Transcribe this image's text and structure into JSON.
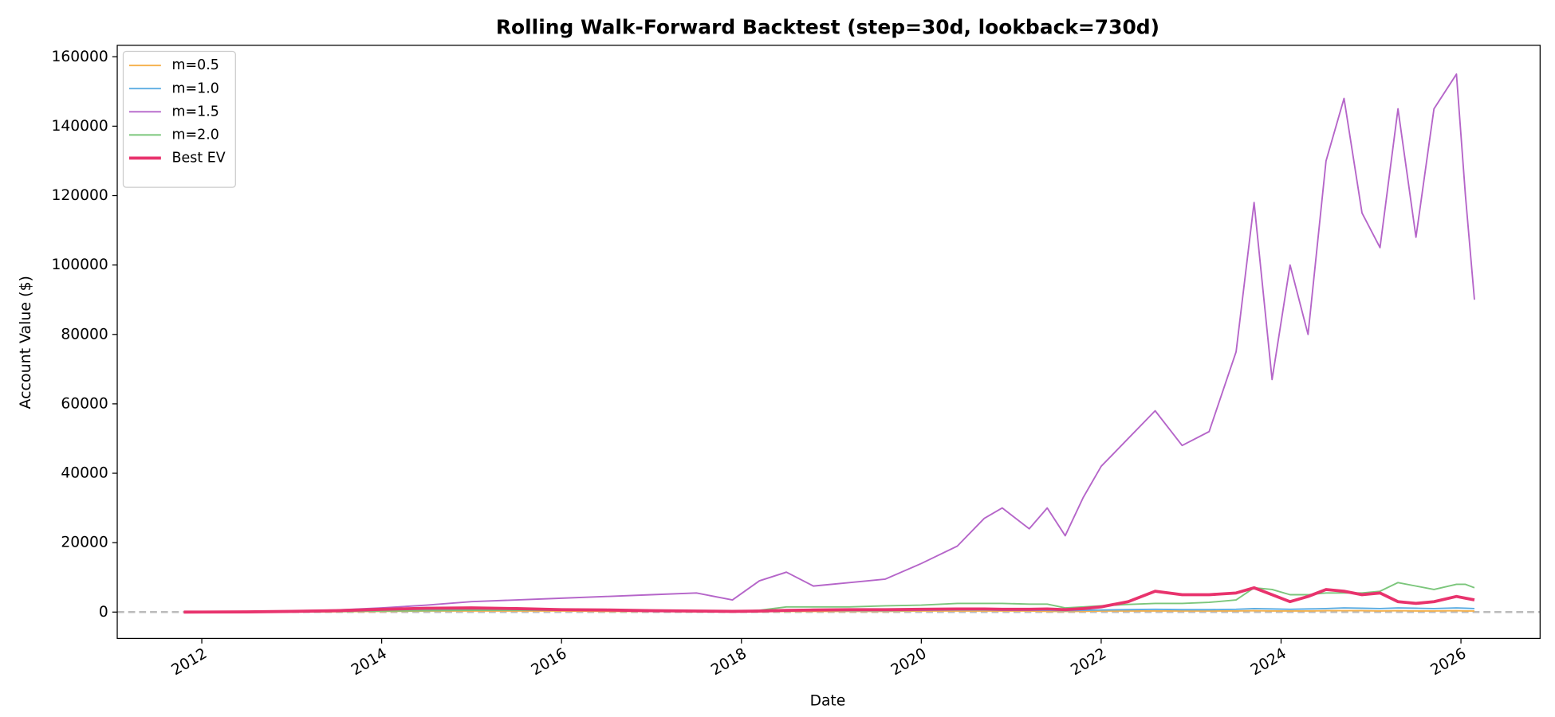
{
  "chart_data": {
    "type": "line",
    "title": "Rolling Walk-Forward Backtest  (step=30d, lookback=730d)",
    "xlabel": "Date",
    "ylabel": "Account Value ($)",
    "x": [
      2011.8,
      2012.5,
      2013.0,
      2013.5,
      2014.0,
      2014.5,
      2015.0,
      2015.5,
      2016.0,
      2016.5,
      2017.0,
      2017.5,
      2017.9,
      2018.2,
      2018.5,
      2018.8,
      2019.2,
      2019.6,
      2020.0,
      2020.4,
      2020.7,
      2020.9,
      2021.2,
      2021.4,
      2021.6,
      2021.8,
      2022.0,
      2022.3,
      2022.6,
      2022.9,
      2023.2,
      2023.5,
      2023.7,
      2023.9,
      2024.1,
      2024.3,
      2024.5,
      2024.7,
      2024.9,
      2025.1,
      2025.3,
      2025.5,
      2025.7,
      2025.95,
      2026.05,
      2026.15
    ],
    "series": [
      {
        "name": "m=0.5",
        "color": "#f5b04a",
        "width": 1.5,
        "values": [
          0,
          20,
          50,
          100,
          200,
          300,
          300,
          300,
          300,
          200,
          200,
          100,
          100,
          100,
          200,
          200,
          200,
          200,
          300,
          300,
          300,
          300,
          300,
          200,
          200,
          200,
          300,
          300,
          300,
          300,
          300,
          300,
          400,
          300,
          300,
          300,
          400,
          400,
          400,
          300,
          400,
          300,
          300,
          400,
          300,
          300
        ]
      },
      {
        "name": "m=1.0",
        "color": "#5dade2",
        "width": 1.5,
        "values": [
          0,
          50,
          100,
          200,
          400,
          600,
          700,
          600,
          500,
          500,
          400,
          300,
          200,
          300,
          400,
          400,
          400,
          400,
          500,
          600,
          600,
          500,
          500,
          500,
          400,
          500,
          600,
          700,
          800,
          700,
          700,
          800,
          1000,
          900,
          800,
          900,
          1000,
          1200,
          1100,
          1000,
          1200,
          1100,
          1000,
          1200,
          1100,
          1000
        ]
      },
      {
        "name": "m=1.5",
        "color": "#b565c9",
        "width": 1.5,
        "values": [
          0,
          100,
          300,
          600,
          1200,
          2000,
          3000,
          3500,
          4000,
          4500,
          5000,
          5500,
          3500,
          9000,
          11500,
          7500,
          8500,
          9500,
          14000,
          19000,
          27000,
          30000,
          24000,
          30000,
          22000,
          33000,
          42000,
          50000,
          58000,
          48000,
          52000,
          75000,
          118000,
          67000,
          100000,
          80000,
          130000,
          148000,
          115000,
          105000,
          145000,
          108000,
          145000,
          155000,
          120000,
          90000
        ]
      },
      {
        "name": "m=2.0",
        "color": "#7bc67b",
        "width": 1.5,
        "values": [
          0,
          50,
          100,
          200,
          300,
          400,
          500,
          500,
          500,
          500,
          400,
          300,
          200,
          500,
          1500,
          1500,
          1500,
          1800,
          2000,
          2500,
          2500,
          2500,
          2300,
          2300,
          1200,
          1500,
          1800,
          2200,
          2500,
          2500,
          2800,
          3500,
          7000,
          6500,
          5000,
          5000,
          5500,
          5500,
          5500,
          6000,
          8500,
          7500,
          6500,
          8000,
          8000,
          7000
        ]
      },
      {
        "name": "Best EV",
        "color": "#e8336d",
        "width": 3,
        "values": [
          0,
          50,
          200,
          400,
          800,
          1100,
          1200,
          1000,
          700,
          600,
          400,
          300,
          200,
          300,
          500,
          600,
          700,
          700,
          800,
          900,
          900,
          800,
          800,
          900,
          700,
          1000,
          1500,
          3000,
          6000,
          5000,
          5000,
          5500,
          7000,
          5000,
          3000,
          4500,
          6500,
          6000,
          5000,
          5500,
          3000,
          2500,
          3000,
          4500,
          4000,
          3500
        ]
      }
    ],
    "xlim": [
      2011.06,
      2026.88
    ],
    "xticks": [
      2012,
      2014,
      2016,
      2018,
      2020,
      2022,
      2024,
      2026
    ],
    "ylim": [
      -7600,
      163300
    ],
    "yticks": [
      0,
      20000,
      40000,
      60000,
      80000,
      100000,
      120000,
      140000,
      160000
    ],
    "hline_y": 0,
    "grid": false,
    "legend": "upper left"
  }
}
